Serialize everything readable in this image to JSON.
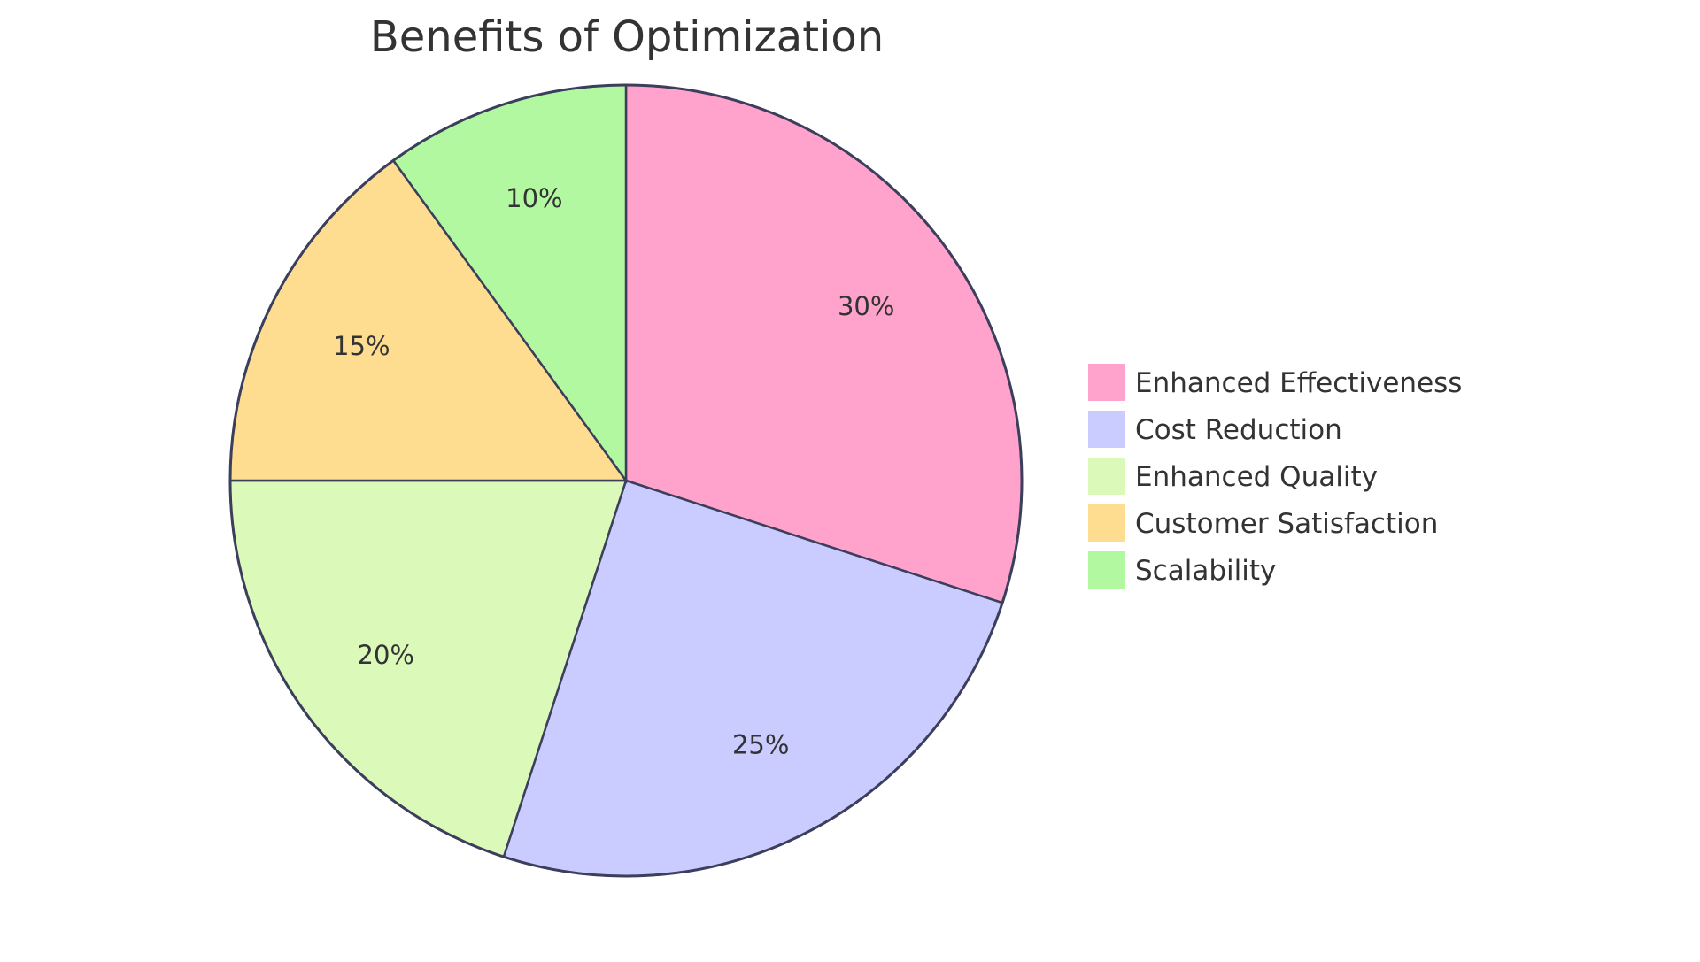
{
  "chart_data": {
    "type": "pie",
    "title": "Benefits of Optimization",
    "slices": [
      {
        "label": "Enhanced Effectiveness",
        "value": 30,
        "display": "30%",
        "color": "#FFA3CC"
      },
      {
        "label": "Cost Reduction",
        "value": 25,
        "display": "25%",
        "color": "#CACBFF"
      },
      {
        "label": "Enhanced Quality",
        "value": 20,
        "display": "20%",
        "color": "#DBF9B9"
      },
      {
        "label": "Customer Satisfaction",
        "value": 15,
        "display": "15%",
        "color": "#FEDD91"
      },
      {
        "label": "Scalability",
        "value": 10,
        "display": "10%",
        "color": "#B2F8A0"
      }
    ],
    "legend_position": "right",
    "outline_color": "#3B3F5C"
  }
}
